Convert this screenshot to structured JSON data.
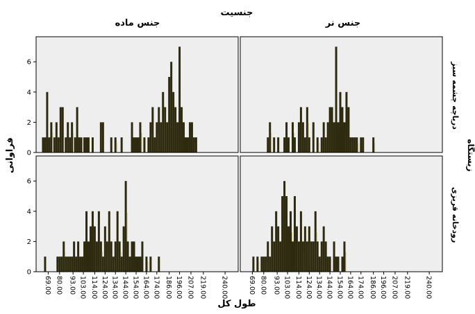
{
  "chart_data": {
    "type": "bar",
    "title": "جنسیت",
    "xlabel": "طول کل",
    "ylabel": "فراوانی",
    "row_group_label": "زیستگاه",
    "columns": [
      "جنس ماده",
      "جنس نر"
    ],
    "rows": [
      "دریاچه چشمه سبز",
      "رودخانه قریزی"
    ],
    "x_range": [
      60,
      250
    ],
    "x_ticks": [
      "69.00",
      "80.00",
      "93.00",
      "103.00",
      "114.00",
      "124.00",
      "134.00",
      "144.00",
      "154.00",
      "164.00",
      "174.00",
      "186.00",
      "196.00",
      "207.00",
      "219.00",
      "240.00"
    ],
    "y_range": [
      0,
      7.2
    ],
    "y_ticks": [
      0,
      2,
      4,
      6
    ],
    "panels": [
      {
        "row": "دریاچه چشمه سبز",
        "column": "جنس ماده",
        "bars": [
          {
            "x": 64,
            "y": 1
          },
          {
            "x": 66,
            "y": 1
          },
          {
            "x": 68,
            "y": 4
          },
          {
            "x": 70,
            "y": 1
          },
          {
            "x": 72,
            "y": 2
          },
          {
            "x": 75,
            "y": 1
          },
          {
            "x": 77,
            "y": 2
          },
          {
            "x": 79,
            "y": 1
          },
          {
            "x": 81,
            "y": 3
          },
          {
            "x": 83,
            "y": 3
          },
          {
            "x": 86,
            "y": 1
          },
          {
            "x": 88,
            "y": 2
          },
          {
            "x": 90,
            "y": 1
          },
          {
            "x": 92,
            "y": 2
          },
          {
            "x": 95,
            "y": 1
          },
          {
            "x": 97,
            "y": 3
          },
          {
            "x": 99,
            "y": 1
          },
          {
            "x": 101,
            "y": 1
          },
          {
            "x": 104,
            "y": 1
          },
          {
            "x": 106,
            "y": 1
          },
          {
            "x": 108,
            "y": 1
          },
          {
            "x": 112,
            "y": 1
          },
          {
            "x": 120,
            "y": 2
          },
          {
            "x": 122,
            "y": 2
          },
          {
            "x": 130,
            "y": 1
          },
          {
            "x": 134,
            "y": 1
          },
          {
            "x": 140,
            "y": 1
          },
          {
            "x": 150,
            "y": 2
          },
          {
            "x": 152,
            "y": 1
          },
          {
            "x": 154,
            "y": 1
          },
          {
            "x": 156,
            "y": 1
          },
          {
            "x": 158,
            "y": 2
          },
          {
            "x": 162,
            "y": 1
          },
          {
            "x": 166,
            "y": 1
          },
          {
            "x": 168,
            "y": 2
          },
          {
            "x": 170,
            "y": 3
          },
          {
            "x": 172,
            "y": 1
          },
          {
            "x": 174,
            "y": 2
          },
          {
            "x": 176,
            "y": 3
          },
          {
            "x": 178,
            "y": 2
          },
          {
            "x": 180,
            "y": 4
          },
          {
            "x": 182,
            "y": 3
          },
          {
            "x": 184,
            "y": 2
          },
          {
            "x": 186,
            "y": 5
          },
          {
            "x": 188,
            "y": 6
          },
          {
            "x": 190,
            "y": 4
          },
          {
            "x": 192,
            "y": 3
          },
          {
            "x": 194,
            "y": 2
          },
          {
            "x": 196,
            "y": 7
          },
          {
            "x": 198,
            "y": 3
          },
          {
            "x": 200,
            "y": 2
          },
          {
            "x": 202,
            "y": 1
          },
          {
            "x": 204,
            "y": 1
          },
          {
            "x": 206,
            "y": 2
          },
          {
            "x": 208,
            "y": 2
          },
          {
            "x": 210,
            "y": 1
          },
          {
            "x": 212,
            "y": 1
          }
        ]
      },
      {
        "row": "دریاچه چشمه سبز",
        "column": "جنس نر",
        "bars": [
          {
            "x": 84,
            "y": 1
          },
          {
            "x": 86,
            "y": 2
          },
          {
            "x": 90,
            "y": 1
          },
          {
            "x": 94,
            "y": 1
          },
          {
            "x": 100,
            "y": 1
          },
          {
            "x": 102,
            "y": 2
          },
          {
            "x": 104,
            "y": 1
          },
          {
            "x": 108,
            "y": 2
          },
          {
            "x": 110,
            "y": 1
          },
          {
            "x": 114,
            "y": 2
          },
          {
            "x": 116,
            "y": 3
          },
          {
            "x": 118,
            "y": 2
          },
          {
            "x": 120,
            "y": 1
          },
          {
            "x": 122,
            "y": 3
          },
          {
            "x": 124,
            "y": 1
          },
          {
            "x": 128,
            "y": 2
          },
          {
            "x": 132,
            "y": 1
          },
          {
            "x": 136,
            "y": 1
          },
          {
            "x": 138,
            "y": 2
          },
          {
            "x": 140,
            "y": 1
          },
          {
            "x": 142,
            "y": 2
          },
          {
            "x": 144,
            "y": 3
          },
          {
            "x": 146,
            "y": 3
          },
          {
            "x": 148,
            "y": 2
          },
          {
            "x": 150,
            "y": 7
          },
          {
            "x": 152,
            "y": 2
          },
          {
            "x": 154,
            "y": 4
          },
          {
            "x": 156,
            "y": 3
          },
          {
            "x": 158,
            "y": 2
          },
          {
            "x": 160,
            "y": 4
          },
          {
            "x": 162,
            "y": 3
          },
          {
            "x": 164,
            "y": 1
          },
          {
            "x": 166,
            "y": 1
          },
          {
            "x": 168,
            "y": 1
          },
          {
            "x": 170,
            "y": 1
          },
          {
            "x": 174,
            "y": 1
          },
          {
            "x": 176,
            "y": 1
          },
          {
            "x": 186,
            "y": 1
          }
        ]
      },
      {
        "row": "رودخانه قریزی",
        "column": "جنس ماده",
        "bars": [
          {
            "x": 66,
            "y": 1
          },
          {
            "x": 78,
            "y": 1
          },
          {
            "x": 80,
            "y": 1
          },
          {
            "x": 82,
            "y": 1
          },
          {
            "x": 84,
            "y": 2
          },
          {
            "x": 86,
            "y": 1
          },
          {
            "x": 88,
            "y": 1
          },
          {
            "x": 90,
            "y": 1
          },
          {
            "x": 92,
            "y": 1
          },
          {
            "x": 94,
            "y": 2
          },
          {
            "x": 96,
            "y": 1
          },
          {
            "x": 98,
            "y": 2
          },
          {
            "x": 100,
            "y": 1
          },
          {
            "x": 102,
            "y": 1
          },
          {
            "x": 104,
            "y": 2
          },
          {
            "x": 106,
            "y": 4
          },
          {
            "x": 108,
            "y": 2
          },
          {
            "x": 110,
            "y": 3
          },
          {
            "x": 112,
            "y": 4
          },
          {
            "x": 114,
            "y": 3
          },
          {
            "x": 116,
            "y": 2
          },
          {
            "x": 118,
            "y": 4
          },
          {
            "x": 120,
            "y": 2
          },
          {
            "x": 122,
            "y": 1
          },
          {
            "x": 124,
            "y": 3
          },
          {
            "x": 126,
            "y": 2
          },
          {
            "x": 128,
            "y": 4
          },
          {
            "x": 130,
            "y": 2
          },
          {
            "x": 132,
            "y": 1
          },
          {
            "x": 134,
            "y": 2
          },
          {
            "x": 136,
            "y": 4
          },
          {
            "x": 138,
            "y": 2
          },
          {
            "x": 140,
            "y": 1
          },
          {
            "x": 142,
            "y": 3
          },
          {
            "x": 144,
            "y": 6
          },
          {
            "x": 146,
            "y": 2
          },
          {
            "x": 148,
            "y": 1
          },
          {
            "x": 150,
            "y": 2
          },
          {
            "x": 152,
            "y": 2
          },
          {
            "x": 154,
            "y": 1
          },
          {
            "x": 156,
            "y": 1
          },
          {
            "x": 158,
            "y": 1
          },
          {
            "x": 160,
            "y": 2
          },
          {
            "x": 164,
            "y": 1
          },
          {
            "x": 168,
            "y": 1
          },
          {
            "x": 176,
            "y": 1
          }
        ]
      },
      {
        "row": "رودخانه قریزی",
        "column": "جنس نر",
        "bars": [
          {
            "x": 70,
            "y": 1
          },
          {
            "x": 74,
            "y": 1
          },
          {
            "x": 78,
            "y": 1
          },
          {
            "x": 80,
            "y": 1
          },
          {
            "x": 82,
            "y": 1
          },
          {
            "x": 84,
            "y": 2
          },
          {
            "x": 86,
            "y": 1
          },
          {
            "x": 88,
            "y": 3
          },
          {
            "x": 90,
            "y": 2
          },
          {
            "x": 92,
            "y": 4
          },
          {
            "x": 94,
            "y": 3
          },
          {
            "x": 96,
            "y": 2
          },
          {
            "x": 98,
            "y": 5
          },
          {
            "x": 100,
            "y": 6
          },
          {
            "x": 102,
            "y": 5
          },
          {
            "x": 104,
            "y": 3
          },
          {
            "x": 106,
            "y": 4
          },
          {
            "x": 108,
            "y": 2
          },
          {
            "x": 110,
            "y": 5
          },
          {
            "x": 112,
            "y": 3
          },
          {
            "x": 114,
            "y": 2
          },
          {
            "x": 116,
            "y": 4
          },
          {
            "x": 118,
            "y": 2
          },
          {
            "x": 120,
            "y": 3
          },
          {
            "x": 122,
            "y": 2
          },
          {
            "x": 124,
            "y": 3
          },
          {
            "x": 126,
            "y": 2
          },
          {
            "x": 128,
            "y": 2
          },
          {
            "x": 130,
            "y": 4
          },
          {
            "x": 132,
            "y": 2
          },
          {
            "x": 134,
            "y": 1
          },
          {
            "x": 136,
            "y": 2
          },
          {
            "x": 138,
            "y": 3
          },
          {
            "x": 140,
            "y": 2
          },
          {
            "x": 142,
            "y": 1
          },
          {
            "x": 144,
            "y": 1
          },
          {
            "x": 148,
            "y": 2
          },
          {
            "x": 150,
            "y": 1
          },
          {
            "x": 152,
            "y": 1
          },
          {
            "x": 156,
            "y": 1
          },
          {
            "x": 158,
            "y": 2
          }
        ]
      }
    ],
    "plot_background": "#eeeeee",
    "bar_fill": "#2e2a10",
    "bar_highlight": "#c9c28a",
    "grid": false
  }
}
